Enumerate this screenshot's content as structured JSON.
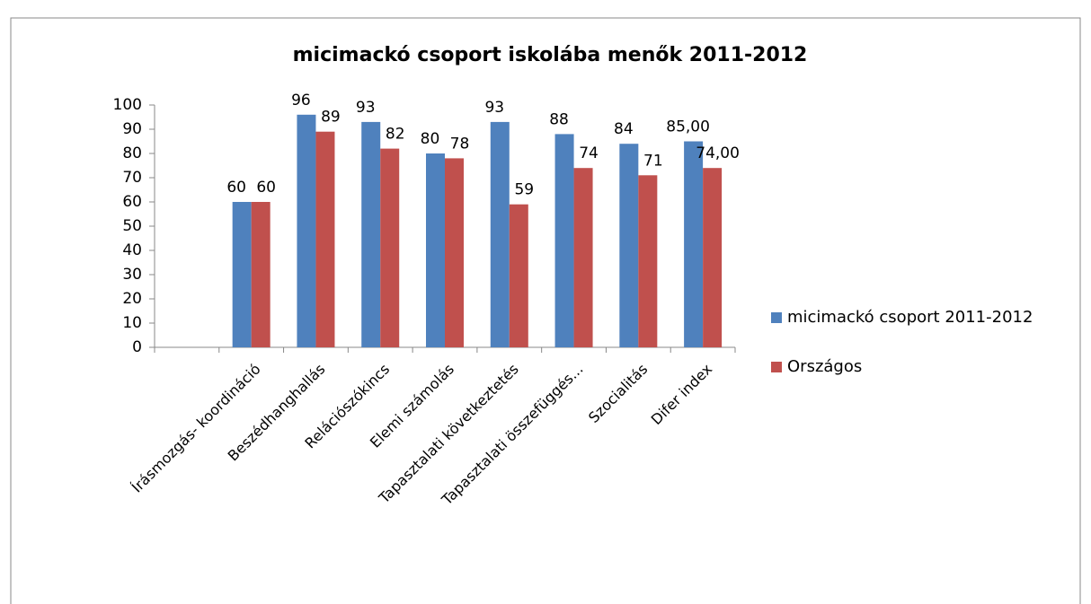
{
  "chart_data": {
    "type": "bar",
    "title": "micimackó csoport iskolába menők 2011-2012",
    "categories": [
      null,
      "Írásmozgás- koordináció",
      "Beszédhanghallás",
      "Relációszókincs",
      "Elemi számolás",
      "Tapasztalati következtetés",
      "Tapasztalati összefüggés...",
      "Szocialitás",
      "Difer index"
    ],
    "series": [
      {
        "name": "micimackó csoport 2011-2012",
        "color": "#4f81bd",
        "values": [
          null,
          60,
          96,
          93,
          80,
          93,
          88,
          84,
          85
        ],
        "value_labels": [
          null,
          "60",
          "96",
          "93",
          "80",
          "93",
          "88",
          "84",
          "85,00"
        ]
      },
      {
        "name": "Országos",
        "color": "#c0504d",
        "values": [
          null,
          60,
          89,
          82,
          78,
          59,
          74,
          71,
          74
        ],
        "value_labels": [
          null,
          "60",
          "89",
          "82",
          "78",
          "59",
          "74",
          "71",
          "74,00"
        ]
      }
    ],
    "ylim": [
      0,
      100
    ],
    "yticks": [
      0,
      10,
      20,
      30,
      40,
      50,
      60,
      70,
      80,
      90,
      100
    ],
    "grid": false,
    "legend": "right"
  }
}
